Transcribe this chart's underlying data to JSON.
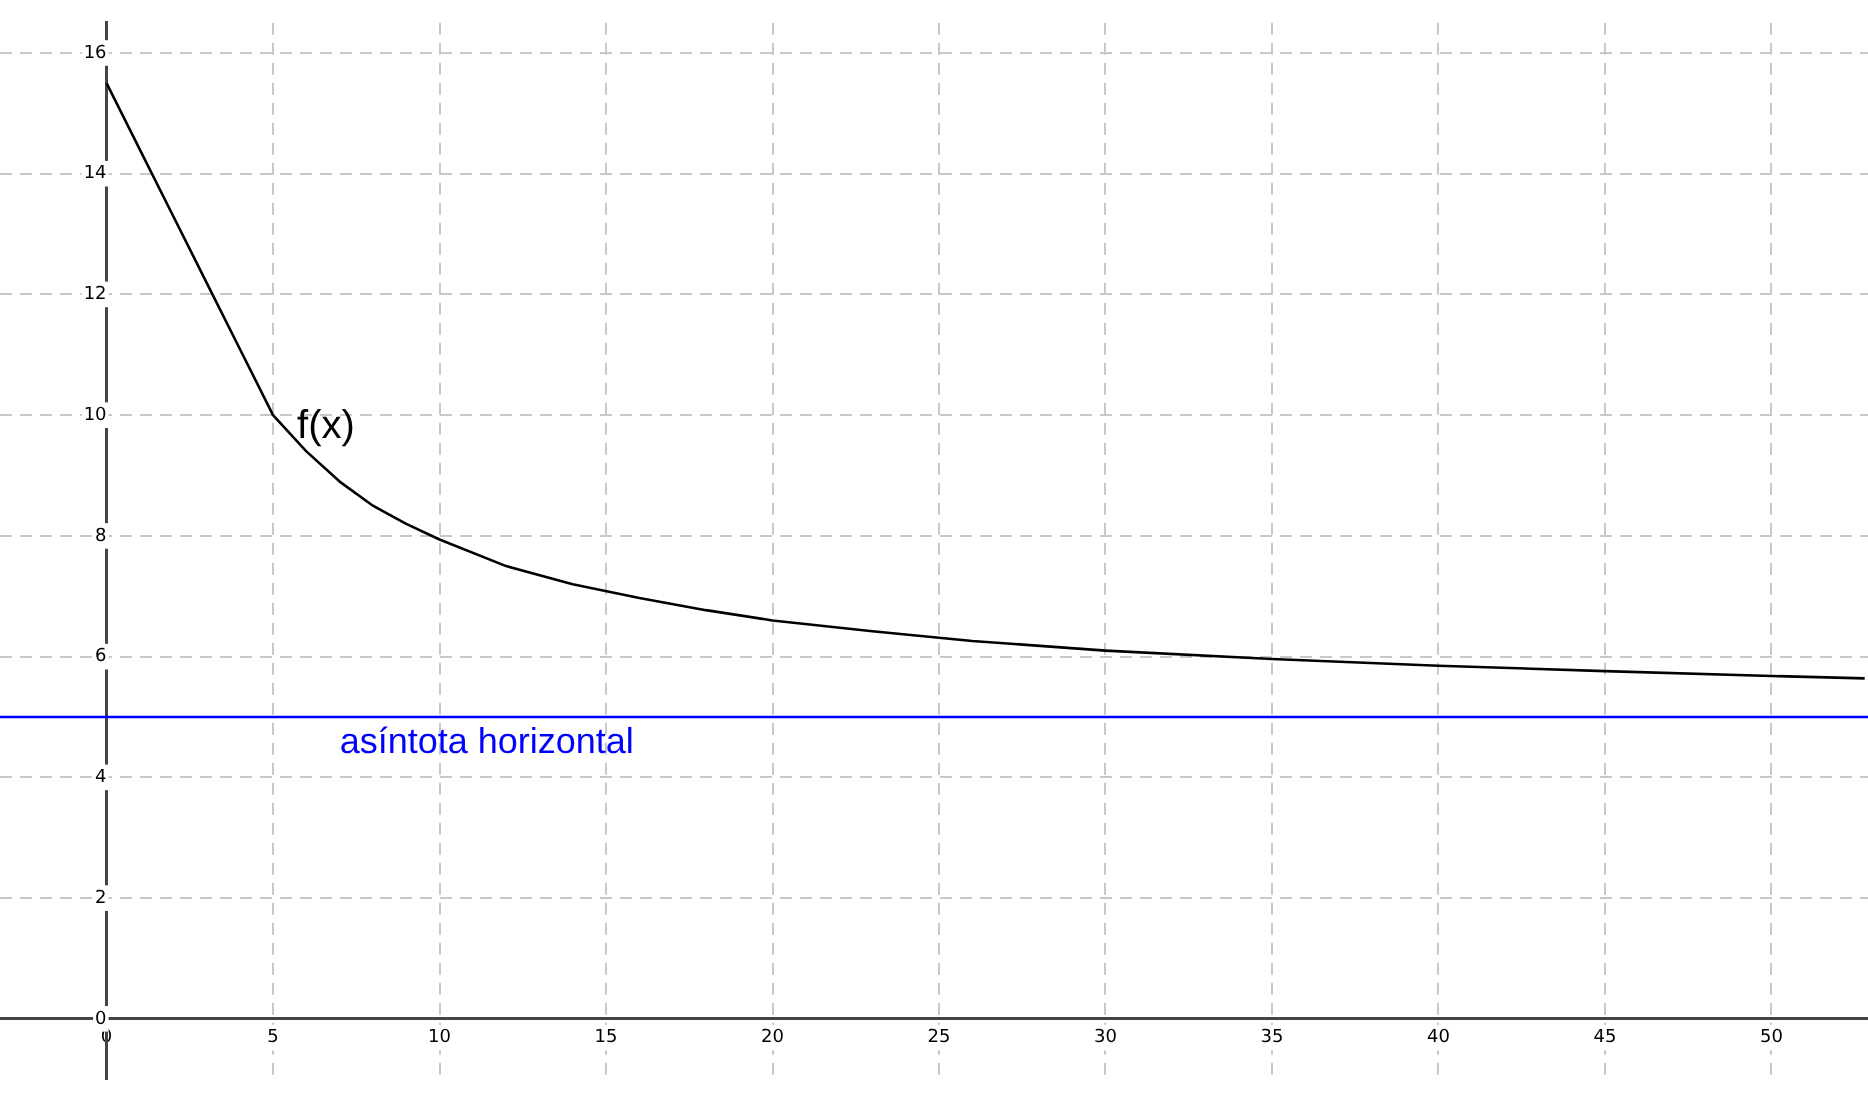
{
  "chart_data": {
    "type": "line",
    "x": [
      0,
      1,
      2,
      3,
      4,
      5,
      6,
      7,
      8,
      9,
      10,
      12,
      14,
      16,
      18,
      20,
      23,
      26,
      30,
      35,
      40,
      45,
      50,
      52.8
    ],
    "series": [
      {
        "name": "f(x)",
        "color": "#000000",
        "values": [
          15.5,
          14.4,
          13.3,
          12.2,
          11.1,
          10,
          9.4,
          8.9,
          8.5,
          8.2,
          7.94,
          7.5,
          7.2,
          6.97,
          6.77,
          6.6,
          6.42,
          6.26,
          6.1,
          5.96,
          5.85,
          5.76,
          5.68,
          5.64
        ]
      }
    ],
    "xlim": [
      -3.2,
      52.9
    ],
    "ylim": [
      -1,
      16.5
    ],
    "xticks": [
      0,
      5,
      10,
      15,
      20,
      25,
      30,
      35,
      40,
      45,
      50
    ],
    "yticks": [
      0,
      2,
      4,
      6,
      8,
      10,
      12,
      14,
      16
    ],
    "grid": true,
    "legend": false,
    "marker": "none",
    "line_style": "solid",
    "ref_lines": [
      {
        "axis": "y",
        "value": 5,
        "label": "asíntota horizontal",
        "color": "#0000ff"
      }
    ]
  }
}
